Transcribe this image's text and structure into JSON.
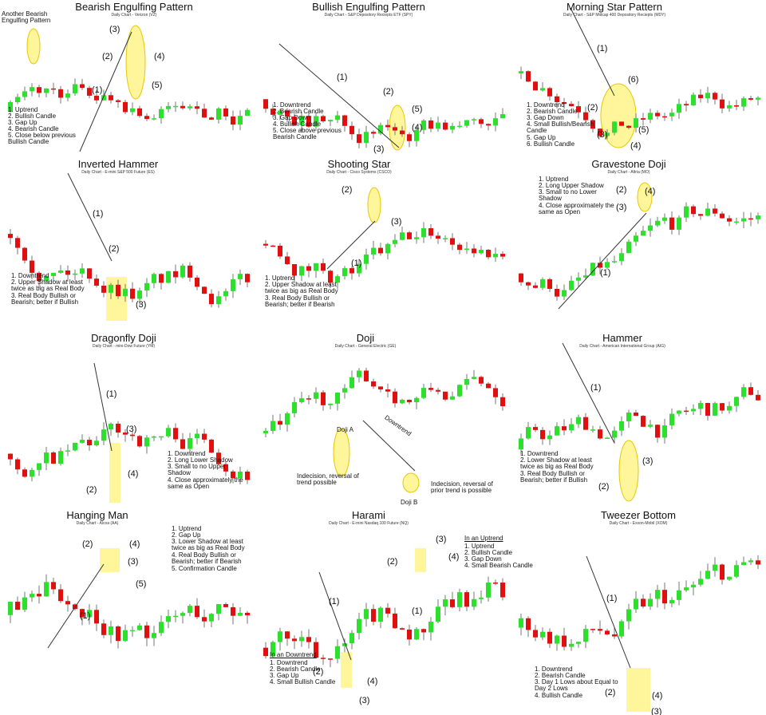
{
  "panels": [
    {
      "title": "Bearish Engulfing Pattern",
      "subtitle": "Daily Chart - Verizon (VZ)",
      "extra": [
        "Another Bearish Engulfing Pattern"
      ],
      "notes": [
        "1. Uptrend",
        "2. Bullish Candle",
        "3. Gap Up",
        "4. Bearish Candle",
        "5. Close below previous Bullish Candle"
      ],
      "labels": [
        "(1)",
        "(2)",
        "(3)",
        "(4)",
        "(5)"
      ]
    },
    {
      "title": "Bullish Engulfing Pattern",
      "subtitle": "Daily Chart - S&P Depository Reciepts ETF (SPY)",
      "notes": [
        "1. Downtrend",
        "2. Bearish Candle",
        "3. Gap Down",
        "4. Bullish Candle",
        "5. Close above previous Bearish Candle"
      ],
      "labels": [
        "(1)",
        "(2)",
        "(3)",
        "(4)",
        "(5)"
      ]
    },
    {
      "title": "Morning Star Pattern",
      "subtitle": "Daily Chart - S&P Midcap 400 Depository Reciepts (MDY)",
      "notes": [
        "1. Downtrend",
        "2. Bearish Candle",
        "3. Gap Down",
        "4. Small Bullish/Bearish Candle",
        "5. Gap Up",
        "6. Bullish Candle"
      ],
      "labels": [
        "(1)",
        "(2)",
        "(3)",
        "(4)",
        "(5)",
        "(6)"
      ]
    },
    {
      "title": "Inverted Hammer",
      "subtitle": "Daily Chart - E-mini S&P 500 Future (ES)",
      "notes": [
        "1. Downtrend",
        "2. Upper Shadow at least twice as big as Real Body",
        "3. Real Body Bullish or Bearish; better if Bullish"
      ],
      "labels": [
        "(1)",
        "(2)",
        "(3)"
      ]
    },
    {
      "title": "Shooting Star",
      "subtitle": "Daily Chart - Cisco Systems (CSCO)",
      "notes": [
        "1. Uptrend",
        "2. Upper Shadow at least twice as big as Real Body",
        "3. Real Body Bullish or Bearish; better if Bearish"
      ],
      "labels": [
        "(1)",
        "(2)",
        "(3)"
      ]
    },
    {
      "title": "Gravestone Doji",
      "subtitle": "Daily Chart - Altria (MO)",
      "notes": [
        "1. Uptrend",
        "2. Long Upper Shadow",
        "3. Small to no Lower Shadow",
        "4. Close approximately the same as Open"
      ],
      "labels": [
        "(1)",
        "(2)",
        "(3)",
        "(4)"
      ]
    },
    {
      "title": "Dragonfly Doji",
      "subtitle": "Daily Chart - mini-Dow Future (YM)",
      "notes": [
        "1. Downtrend",
        "2. Long Lower Shadow",
        "3. Small to no Upper Shadow",
        "4. Close approximately the same as Open"
      ],
      "labels": [
        "(1)",
        "(2)",
        "(3)",
        "(4)"
      ]
    },
    {
      "title": "Doji",
      "subtitle": "Daily Chart - General Electric (GE)",
      "extra": [
        "Doji A",
        "Doji B",
        "Downtrend",
        "Indecision, reversal of trend possible",
        "Indecision, reversal of prior trend is possible"
      ]
    },
    {
      "title": "Hammer",
      "subtitle": "Daily Chart - American International Group (AIG)",
      "notes": [
        "1. Downtrend",
        "2. Lower Shadow at least twice as big as Real Body",
        "3. Real Body Bullish or Bearish; better if Bullish"
      ],
      "labels": [
        "(1)",
        "(2)",
        "(3)"
      ]
    },
    {
      "title": "Hanging Man",
      "subtitle": "Daily Chart - Alcoa (AA)",
      "notes": [
        "1. Uptrend",
        "2. Gap Up",
        "3. Lower Shadow at least twice as big as Real Body",
        "4. Real Body Bullish or Bearish; better if Bearish",
        "5. Confirmation Candle"
      ],
      "labels": [
        "(1)",
        "(2)",
        "(3)",
        "(4)",
        "(5)"
      ]
    },
    {
      "title": "Harami",
      "subtitle": "Daily Chart - E-mini Nasdaq 100 Future (NQ)",
      "heading": "In an Uptrend",
      "notes": [
        "1. Uptrend",
        "2. Bullish Candle",
        "3. Gap Down",
        "4. Small Bearish Candle"
      ],
      "heading2": "In an Downtrend",
      "notes2": [
        "1. Downtrend",
        "2. Bearish Candle",
        "3. Gap Up",
        "4. Small Bullish Candle"
      ],
      "labels": [
        "(1)",
        "(1)",
        "(2)",
        "(3)",
        "(4)",
        "(2)",
        "(3)",
        "(4)"
      ]
    },
    {
      "title": "Tweezer Bottom",
      "subtitle": "Daily Chart - Exxon-Mobil (XOM)",
      "notes": [
        "1. Downtrend",
        "2. Bearish Candle",
        "3. Day 1 Lows about Equal to Day 2 Lows",
        "4. Bullish Candle"
      ],
      "labels": [
        "(1)",
        "(2)",
        "(3)",
        "(4)"
      ]
    }
  ]
}
